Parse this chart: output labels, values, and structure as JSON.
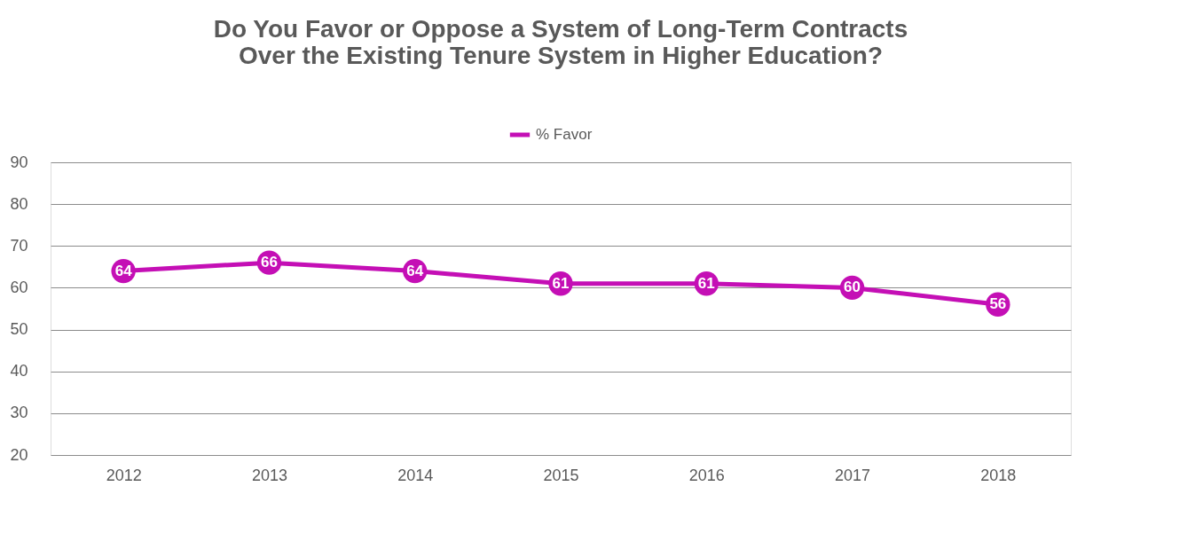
{
  "chart_data": {
    "type": "line",
    "title": "Do You Favor or Oppose a System of Long-Term Contracts\nOver the Existing Tenure System in Higher Education?",
    "categories": [
      "2012",
      "2013",
      "2014",
      "2015",
      "2016",
      "2017",
      "2018"
    ],
    "series": [
      {
        "name": "% Favor",
        "color": "#c40fb5",
        "values": [
          64,
          66,
          64,
          61,
          61,
          60,
          56
        ]
      }
    ],
    "ylim": [
      20,
      90
    ],
    "yticks": [
      20,
      30,
      40,
      50,
      60,
      70,
      80,
      90
    ],
    "grid": "y",
    "legend": "top",
    "marker": "circle",
    "line_style": "solid",
    "data_labels": true
  }
}
